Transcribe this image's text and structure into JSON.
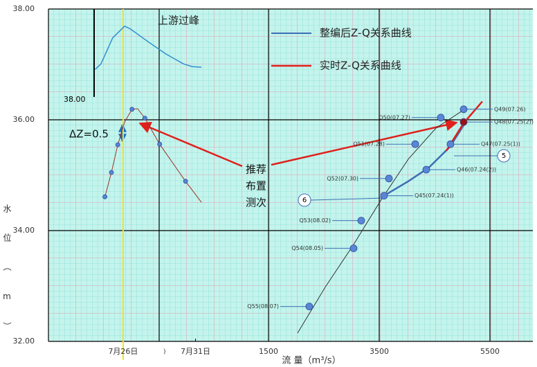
{
  "chart_data": [
    {
      "type": "line",
      "ylim": [
        32,
        38
      ],
      "yticks": [
        {
          "value": 32,
          "label": "32.00"
        },
        {
          "value": 34,
          "label": "34.00"
        },
        {
          "value": 36,
          "label": "36.00"
        },
        {
          "value": 38,
          "label": "38.00"
        }
      ],
      "xlim": [
        -2475,
        6275
      ],
      "xticks": [
        1500,
        3500,
        5500
      ],
      "x_label": "流 量（m³/s）",
      "y_label": "水位（m）",
      "series": [
        {
          "name": "整编后Z-Q关系曲线",
          "color": "#3c6db4",
          "x": [
            3587,
            4025,
            4400,
            4775,
            5050
          ],
          "values": [
            34.63,
            34.89,
            35.14,
            35.51,
            35.94
          ]
        },
        {
          "name": "实时Z-Q关系曲线",
          "color": "#e0201b",
          "x": [
            4712,
            5025,
            5362
          ],
          "values": [
            35.44,
            35.94,
            36.33
          ]
        },
        {
          "color": "#333333",
          "x": [
            2025,
            2525,
            3025,
            3525,
            4025,
            4525,
            5087
          ],
          "values": [
            32.15,
            32.98,
            33.73,
            34.54,
            35.29,
            35.85,
            36.22
          ]
        }
      ],
      "points": {
        "labels": [
          "Q49(07.26)",
          "Q48(07.25(2))",
          "Q50(07.27)",
          "Q51(07.28)",
          "Q47(07.25(1))",
          "Q46(07.24(2))",
          "Q52(07.30)",
          "Q45(07.24(1))",
          "Q53(08.02)",
          "Q54(08.05)",
          "Q55(08.07)"
        ],
        "x": [
          5025,
          5025,
          4612,
          4150,
          4787,
          4350,
          3675,
          3587,
          3175,
          3037,
          2237
        ],
        "values": [
          36.19,
          35.96,
          36.04,
          35.56,
          35.56,
          35.1,
          34.94,
          34.63,
          34.18,
          33.68,
          32.63
        ],
        "colors": [
          "#5b86d6",
          "#a01010",
          "#5b86d6",
          "#5b86d6",
          "#5b86d6",
          "#5b86d6",
          "#5b86d6",
          "#5b86d6",
          "#5b86d6",
          "#5b86d6",
          "#5b86d6"
        ]
      },
      "annotations": {
        "recommend": [
          "推荐",
          "布置",
          "测次"
        ],
        "delta": "ΔZ=0.5",
        "circle_a": "6",
        "circle_b": "5"
      }
    },
    {
      "type": "line",
      "ylim": [
        32,
        38
      ],
      "xlim": [
        20.84,
        54.3
      ],
      "xticks": [
        {
          "value": 26,
          "label": "7月26日"
        },
        {
          "value": 31,
          "label": "7月31日"
        }
      ],
      "series": [
        {
          "name": "上游过峰",
          "color": "#2f8fd0",
          "x": [
            24.07,
            24.47,
            25.28,
            26.1,
            26.5,
            27.72,
            28.94,
            30.16,
            30.77,
            31.41
          ],
          "values": [
            36.91,
            37.01,
            37.48,
            37.69,
            37.64,
            37.41,
            37.19,
            37.01,
            36.96,
            36.95
          ]
        },
        {
          "color": "#a0302a",
          "x": [
            24.62,
            24.74,
            25.19,
            25.63,
            26.1,
            26.61,
            27.0,
            27.5,
            28.52,
            30.31,
            31.41
          ],
          "values": [
            34.58,
            34.61,
            35.05,
            35.55,
            35.96,
            36.19,
            36.2,
            36.03,
            35.56,
            34.89,
            34.51
          ]
        }
      ],
      "points": {
        "x": [
          24.74,
          25.19,
          25.63,
          26.61,
          27.5,
          28.52,
          30.31
        ],
        "values": [
          34.61,
          35.05,
          35.55,
          36.19,
          36.03,
          35.56,
          34.89
        ],
        "color": "#5b86d6"
      },
      "annotations": {
        "stage": "38.00",
        "stray": ")"
      }
    }
  ]
}
